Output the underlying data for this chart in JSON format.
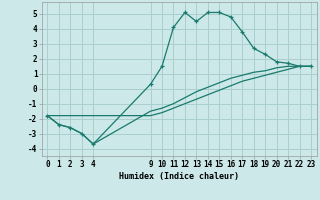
{
  "xlabel": "Humidex (Indice chaleur)",
  "background_color": "#cce8e8",
  "line_color": "#1a7a6e",
  "grid_color": "#aacfcf",
  "xlim": [
    -0.5,
    23.5
  ],
  "ylim": [
    -4.5,
    5.8
  ],
  "xticks": [
    0,
    1,
    2,
    3,
    4,
    9,
    10,
    11,
    12,
    13,
    14,
    15,
    16,
    17,
    18,
    19,
    20,
    21,
    22,
    23
  ],
  "yticks": [
    -4,
    -3,
    -2,
    -1,
    0,
    1,
    2,
    3,
    4,
    5
  ],
  "line1_x": [
    0,
    1,
    2,
    3,
    4,
    9,
    10,
    11,
    12,
    13,
    14,
    15,
    16,
    17,
    18,
    19,
    20,
    21,
    22,
    23
  ],
  "line1_y": [
    -1.8,
    -2.4,
    -2.6,
    -3.0,
    -3.7,
    0.3,
    1.5,
    4.1,
    5.1,
    4.5,
    5.1,
    5.1,
    4.8,
    3.8,
    2.7,
    2.3,
    1.8,
    1.7,
    1.5,
    1.5
  ],
  "line2_x": [
    0,
    1,
    2,
    3,
    4,
    9,
    10,
    11,
    12,
    13,
    14,
    15,
    16,
    17,
    18,
    19,
    20,
    21,
    22,
    23
  ],
  "line2_y": [
    -1.8,
    -2.4,
    -2.6,
    -3.0,
    -3.7,
    -1.5,
    -1.3,
    -1.0,
    -0.6,
    -0.2,
    0.1,
    0.4,
    0.7,
    0.9,
    1.1,
    1.2,
    1.4,
    1.5,
    1.5,
    1.5
  ],
  "line3_x": [
    0,
    9,
    10,
    11,
    12,
    13,
    14,
    15,
    16,
    17,
    18,
    19,
    20,
    21,
    22,
    23
  ],
  "line3_y": [
    -1.8,
    -1.8,
    -1.6,
    -1.3,
    -1.0,
    -0.7,
    -0.4,
    -0.1,
    0.2,
    0.5,
    0.7,
    0.9,
    1.1,
    1.3,
    1.5,
    1.5
  ]
}
